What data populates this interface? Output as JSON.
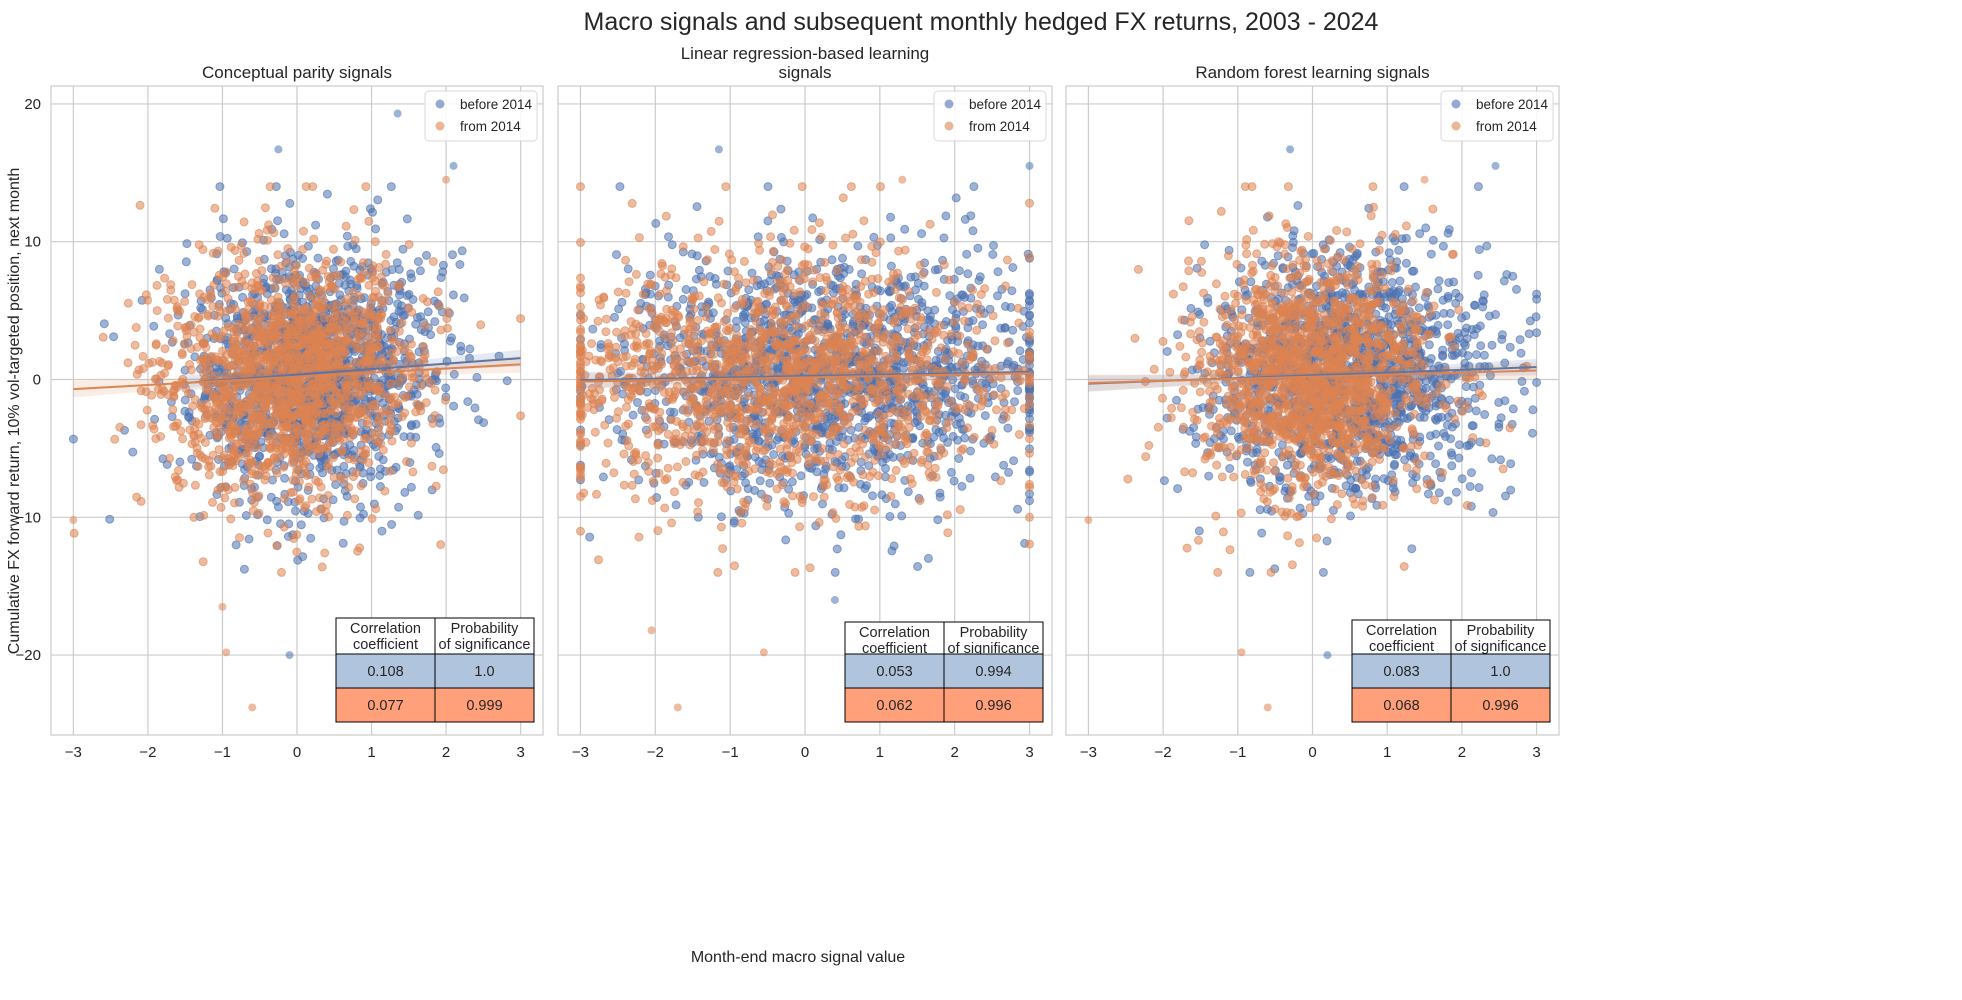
{
  "chart_data": {
    "type": "scatter",
    "title": "Macro signals and subsequent monthly hedged FX returns, 2003 - 2024",
    "xlabel": "Month-end macro signal value",
    "ylabel": "Cumulative FX forward return, 10% vol-targeted position, next month",
    "xlim": [
      -3.3,
      3.3
    ],
    "ylim": [
      -25.8,
      21.3
    ],
    "xticks": [
      -3,
      -2,
      -1,
      0,
      1,
      2,
      3
    ],
    "yticks": [
      -20,
      -10,
      0,
      10,
      20
    ],
    "grid": true,
    "legend_placement": "top-right",
    "series_names": [
      "before 2014",
      "from 2014"
    ],
    "colors": {
      "before": "#4c72b0",
      "from": "#dd8452",
      "table_before": "#b0c4de",
      "table_from": "#ffa07a"
    },
    "table_headers": [
      "Correlation\ncoefficient",
      "Probability\nof significance"
    ],
    "panels": [
      {
        "title": "Conceptual parity signals",
        "series": [
          {
            "name": "before 2014",
            "n": 1500,
            "x_mean": 0.2,
            "x_sd": 0.8,
            "y_sd": 4.1,
            "reg_intercept": 0.35,
            "reg_slope": 0.4,
            "reg_xrange": [
              -1.5,
              3
            ]
          },
          {
            "name": "from 2014",
            "n": 1500,
            "x_mean": -0.1,
            "x_sd": 0.85,
            "y_sd": 4.1,
            "reg_intercept": 0.2,
            "reg_slope": 0.3,
            "reg_xrange": [
              -3,
              3
            ]
          }
        ],
        "outliers": [
          [
            1.35,
            19.3,
            0
          ],
          [
            -0.25,
            16.7,
            0
          ],
          [
            2.1,
            15.5,
            0
          ],
          [
            -0.1,
            -20,
            0
          ],
          [
            -0.6,
            -23.8,
            1
          ],
          [
            -0.95,
            -19.8,
            1
          ],
          [
            -1.0,
            -16.5,
            1
          ],
          [
            -3.0,
            -10.2,
            1
          ],
          [
            2.0,
            14.5,
            1
          ]
        ],
        "table": [
          [
            "0.108",
            "1.0"
          ],
          [
            "0.077",
            "0.999"
          ]
        ]
      },
      {
        "title": "Linear regression-based learning\nsignals",
        "series": [
          {
            "name": "before 2014",
            "n": 1500,
            "x_mean": 0.3,
            "x_sd": 1.4,
            "y_sd": 4.1,
            "reg_intercept": 0.25,
            "reg_slope": 0.1,
            "reg_xrange": [
              -3,
              3
            ]
          },
          {
            "name": "from 2014",
            "n": 1500,
            "x_mean": -0.3,
            "x_sd": 1.5,
            "y_sd": 4.1,
            "reg_intercept": 0.15,
            "reg_slope": 0.1,
            "reg_xrange": [
              -3,
              3
            ]
          }
        ],
        "outliers": [
          [
            -1.15,
            16.7,
            0
          ],
          [
            3.0,
            15.5,
            0
          ],
          [
            0.4,
            -16.0,
            0
          ],
          [
            -1.7,
            -23.8,
            1
          ],
          [
            -2.05,
            -18.2,
            1
          ],
          [
            -0.55,
            -19.8,
            1
          ],
          [
            1.3,
            14.5,
            1
          ]
        ],
        "table": [
          [
            "0.053",
            "0.994"
          ],
          [
            "0.062",
            "0.996"
          ]
        ]
      },
      {
        "title": "Random forest learning signals",
        "series": [
          {
            "name": "before 2014",
            "n": 1500,
            "x_mean": 0.5,
            "x_sd": 0.9,
            "y_sd": 4.1,
            "reg_intercept": 0.3,
            "reg_slope": 0.2,
            "reg_xrange": [
              -3,
              3
            ]
          },
          {
            "name": "from 2014",
            "n": 1500,
            "x_mean": 0.0,
            "x_sd": 0.8,
            "y_sd": 4.1,
            "reg_intercept": 0.2,
            "reg_slope": 0.15,
            "reg_xrange": [
              -3,
              3
            ]
          }
        ],
        "outliers": [
          [
            -0.3,
            16.7,
            0
          ],
          [
            2.45,
            15.5,
            0
          ],
          [
            0.2,
            -20,
            0
          ],
          [
            -0.6,
            -23.8,
            1
          ],
          [
            -0.95,
            -19.8,
            1
          ],
          [
            -3.0,
            -10.2,
            1
          ],
          [
            1.5,
            14.5,
            1
          ]
        ],
        "table": [
          [
            "0.083",
            "1.0"
          ],
          [
            "0.068",
            "0.996"
          ]
        ]
      }
    ]
  }
}
